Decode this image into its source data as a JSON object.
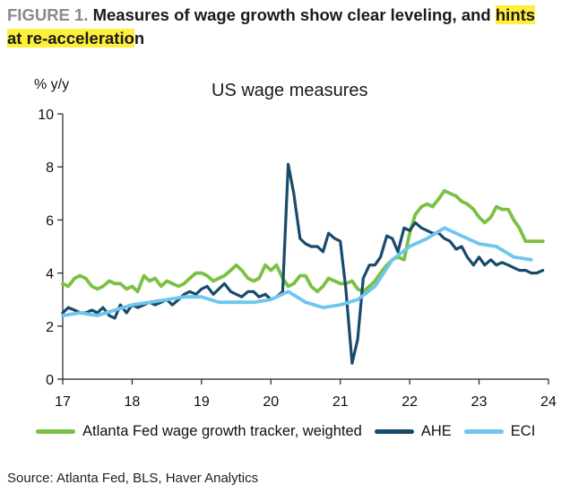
{
  "figure": {
    "label": "FIGURE 1.",
    "title_plain": " Measures of wage growth show clear leveling, and ",
    "title_highlight_1": "hints",
    "title_highlight_2": "at re-acceleratio",
    "title_tail": "n",
    "highlight_color": "#ffef3a"
  },
  "source": "Source: Atlanta Fed, BLS, Haver Analytics",
  "chart_data": {
    "type": "line",
    "title": "US wage measures",
    "ylabel": "% y/y",
    "xlabel": "",
    "xlim": [
      17,
      24
    ],
    "ylim": [
      0,
      10
    ],
    "x_ticks": [
      17,
      18,
      19,
      20,
      21,
      22,
      23,
      24
    ],
    "y_ticks": [
      0,
      2,
      4,
      6,
      8,
      10
    ],
    "grid": false,
    "legend_position": "bottom",
    "series": [
      {
        "name": "Atlanta Fed wage growth tracker, weighted",
        "color": "#7ac143",
        "x": [
          17.0,
          17.08,
          17.17,
          17.25,
          17.33,
          17.42,
          17.5,
          17.58,
          17.67,
          17.75,
          17.83,
          17.92,
          18.0,
          18.08,
          18.17,
          18.25,
          18.33,
          18.42,
          18.5,
          18.58,
          18.67,
          18.75,
          18.83,
          18.92,
          19.0,
          19.08,
          19.17,
          19.25,
          19.33,
          19.42,
          19.5,
          19.58,
          19.67,
          19.75,
          19.83,
          19.92,
          20.0,
          20.08,
          20.17,
          20.25,
          20.33,
          20.42,
          20.5,
          20.58,
          20.67,
          20.75,
          20.83,
          20.92,
          21.0,
          21.08,
          21.17,
          21.25,
          21.33,
          21.42,
          21.5,
          21.58,
          21.67,
          21.75,
          21.83,
          21.92,
          22.0,
          22.08,
          22.17,
          22.25,
          22.33,
          22.42,
          22.5,
          22.58,
          22.67,
          22.75,
          22.83,
          22.92,
          23.0,
          23.08,
          23.17,
          23.25,
          23.33,
          23.42,
          23.5,
          23.58,
          23.67,
          23.75,
          23.83,
          23.92
        ],
        "values": [
          3.6,
          3.5,
          3.8,
          3.9,
          3.8,
          3.5,
          3.4,
          3.5,
          3.7,
          3.6,
          3.6,
          3.4,
          3.5,
          3.3,
          3.9,
          3.7,
          3.8,
          3.5,
          3.7,
          3.6,
          3.5,
          3.6,
          3.8,
          4.0,
          4.0,
          3.9,
          3.7,
          3.8,
          3.9,
          4.1,
          4.3,
          4.1,
          3.8,
          3.7,
          3.8,
          4.3,
          4.1,
          4.3,
          3.8,
          3.5,
          3.6,
          3.9,
          3.9,
          3.5,
          3.3,
          3.5,
          3.8,
          3.7,
          3.6,
          3.6,
          3.7,
          3.4,
          3.3,
          3.5,
          3.7,
          4.0,
          4.3,
          4.5,
          4.6,
          4.5,
          5.5,
          6.2,
          6.5,
          6.6,
          6.5,
          6.8,
          7.1,
          7.0,
          6.9,
          6.7,
          6.6,
          6.4,
          6.1,
          5.9,
          6.1,
          6.5,
          6.4,
          6.4,
          6.0,
          5.7,
          5.2,
          5.2,
          5.2,
          5.2
        ]
      },
      {
        "name": "AHE",
        "color": "#184a6b",
        "x": [
          17.0,
          17.08,
          17.17,
          17.25,
          17.33,
          17.42,
          17.5,
          17.58,
          17.67,
          17.75,
          17.83,
          17.92,
          18.0,
          18.08,
          18.17,
          18.25,
          18.33,
          18.42,
          18.5,
          18.58,
          18.67,
          18.75,
          18.83,
          18.92,
          19.0,
          19.08,
          19.17,
          19.25,
          19.33,
          19.42,
          19.5,
          19.58,
          19.67,
          19.75,
          19.83,
          19.92,
          20.0,
          20.08,
          20.17,
          20.25,
          20.33,
          20.42,
          20.5,
          20.58,
          20.67,
          20.75,
          20.83,
          20.92,
          21.0,
          21.08,
          21.17,
          21.25,
          21.33,
          21.42,
          21.5,
          21.58,
          21.67,
          21.75,
          21.83,
          21.92,
          22.0,
          22.08,
          22.17,
          22.25,
          22.33,
          22.42,
          22.5,
          22.58,
          22.67,
          22.75,
          22.83,
          22.92,
          23.0,
          23.08,
          23.17,
          23.25,
          23.33,
          23.42,
          23.5,
          23.58,
          23.67,
          23.75,
          23.83,
          23.92
        ],
        "values": [
          2.5,
          2.7,
          2.6,
          2.5,
          2.5,
          2.6,
          2.5,
          2.7,
          2.4,
          2.3,
          2.8,
          2.5,
          2.8,
          2.7,
          2.8,
          2.9,
          2.8,
          2.9,
          3.0,
          2.8,
          3.0,
          3.2,
          3.3,
          3.2,
          3.4,
          3.5,
          3.2,
          3.4,
          3.6,
          3.3,
          3.2,
          3.1,
          3.3,
          3.3,
          3.1,
          3.2,
          3.0,
          3.1,
          3.3,
          8.1,
          7.0,
          5.3,
          5.1,
          5.0,
          5.0,
          4.8,
          5.5,
          5.3,
          5.2,
          3.4,
          0.6,
          1.5,
          3.8,
          4.3,
          4.3,
          4.6,
          5.4,
          5.3,
          4.8,
          5.7,
          5.6,
          5.9,
          5.7,
          5.6,
          5.5,
          5.5,
          5.3,
          5.2,
          4.9,
          5.0,
          4.6,
          4.3,
          4.6,
          4.3,
          4.5,
          4.3,
          4.4,
          4.3,
          4.2,
          4.1,
          4.1,
          4.0,
          4.0,
          4.1
        ]
      },
      {
        "name": "ECI",
        "color": "#6ec6ee",
        "x": [
          17.0,
          17.25,
          17.5,
          17.75,
          18.0,
          18.25,
          18.5,
          18.75,
          19.0,
          19.25,
          19.5,
          19.75,
          20.0,
          20.25,
          20.5,
          20.75,
          21.0,
          21.25,
          21.5,
          21.75,
          22.0,
          22.25,
          22.5,
          22.75,
          23.0,
          23.25,
          23.5,
          23.75
        ],
        "values": [
          2.4,
          2.5,
          2.4,
          2.6,
          2.8,
          2.9,
          3.0,
          3.1,
          3.1,
          2.9,
          2.9,
          2.9,
          3.0,
          3.3,
          2.9,
          2.7,
          2.8,
          3.0,
          3.5,
          4.5,
          5.0,
          5.3,
          5.7,
          5.4,
          5.1,
          5.0,
          4.6,
          4.5
        ]
      }
    ]
  }
}
